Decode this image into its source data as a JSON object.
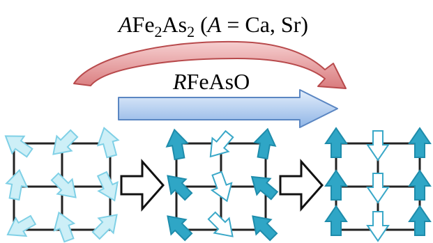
{
  "labels": {
    "top_formula": {
      "prefix_italic": "A",
      "part1": "Fe",
      "sub1": "2",
      "part2": "As",
      "sub2": "2",
      "paren_open": " (",
      "var_italic": "A",
      "rest": " = Ca, Sr)"
    },
    "middle_formula": {
      "prefix_italic": "R",
      "rest": "FeAsO"
    }
  },
  "colors": {
    "red_arrow_fill": "#e8a5a6",
    "red_arrow_stroke": "#b84a4c",
    "blue_arrow_fill": "#a9c9ef",
    "blue_arrow_stroke": "#5a86c2",
    "spin_light_fill": "#cdeff7",
    "spin_light_stroke": "#7fd0e6",
    "spin_dark_fill": "#2fa6c6",
    "spin_dark_stroke": "#1e8cab",
    "spin_open_fill": "#ffffff",
    "spin_open_stroke": "#3aa8c8",
    "transition_arrow_fill": "#ffffff",
    "transition_arrow_stroke": "#111111"
  },
  "icons": {
    "red_arrow": "curved-arrow-icon",
    "blue_arrow": "block-arrow-right-icon",
    "transition": "hollow-arrow-right-icon"
  }
}
